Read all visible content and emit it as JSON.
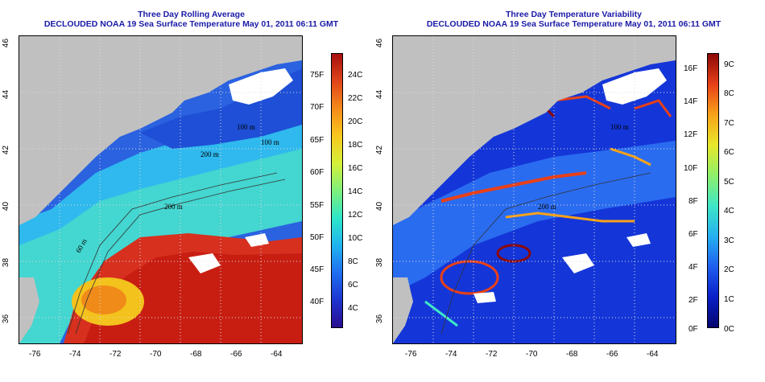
{
  "left_panel": {
    "title_line1": "Three Day Rolling Average",
    "title_line2": "DECLOUDED NOAA 19 Sea Surface Temperature May 01, 2011 06:11 GMT",
    "contours": [
      "100 m",
      "200 m",
      "200 m",
      "60 m",
      "100 m"
    ],
    "colorbar_left_labels": [
      "75F",
      "70F",
      "65F",
      "60F",
      "55F",
      "50F",
      "45F",
      "40F"
    ],
    "colorbar_right_labels": [
      "24C",
      "22C",
      "20C",
      "18C",
      "16C",
      "14C",
      "12C",
      "10C",
      "8C",
      "6C",
      "4C"
    ]
  },
  "right_panel": {
    "title_line1": "Three Day Temperature Variability",
    "title_line2": "DECLOUDED NOAA 19 Sea Surface Temperature May 01, 2011 06:11 GMT",
    "contours": [
      "100 m",
      "200 m"
    ],
    "colorbar_left_labels": [
      "16F",
      "14F",
      "12F",
      "10F",
      "8F",
      "6F",
      "4F",
      "2F",
      "0F"
    ],
    "colorbar_right_labels": [
      "9C",
      "8C",
      "7C",
      "6C",
      "5C",
      "4C",
      "3C",
      "2C",
      "1C",
      "0C"
    ]
  },
  "axes": {
    "x_ticks": [
      "-76",
      "-74",
      "-72",
      "-70",
      "-68",
      "-66",
      "-64"
    ],
    "y_ticks": [
      "46",
      "44",
      "42",
      "40",
      "38",
      "36"
    ]
  },
  "colors": {
    "title": "#1a1aa8",
    "land": "#c0c0c0",
    "cloud": "#ffffff",
    "warm_sst": "#d7301f",
    "cold_sst": "#1e4fd6"
  },
  "colorbar_stops_sst": [
    "#2a0c8f",
    "#1d34d0",
    "#1f6ff0",
    "#20b4f0",
    "#2ee6c8",
    "#7ef07a",
    "#d6f03a",
    "#f8c81e",
    "#f58a1a",
    "#e0451a",
    "#a80f0f"
  ],
  "colorbar_stops_var": [
    "#06066e",
    "#0a1fc8",
    "#1f5ff0",
    "#25b0f0",
    "#3ee6c8",
    "#8ef06a",
    "#e8e82a",
    "#f7a21a",
    "#e84018",
    "#8c0808"
  ]
}
